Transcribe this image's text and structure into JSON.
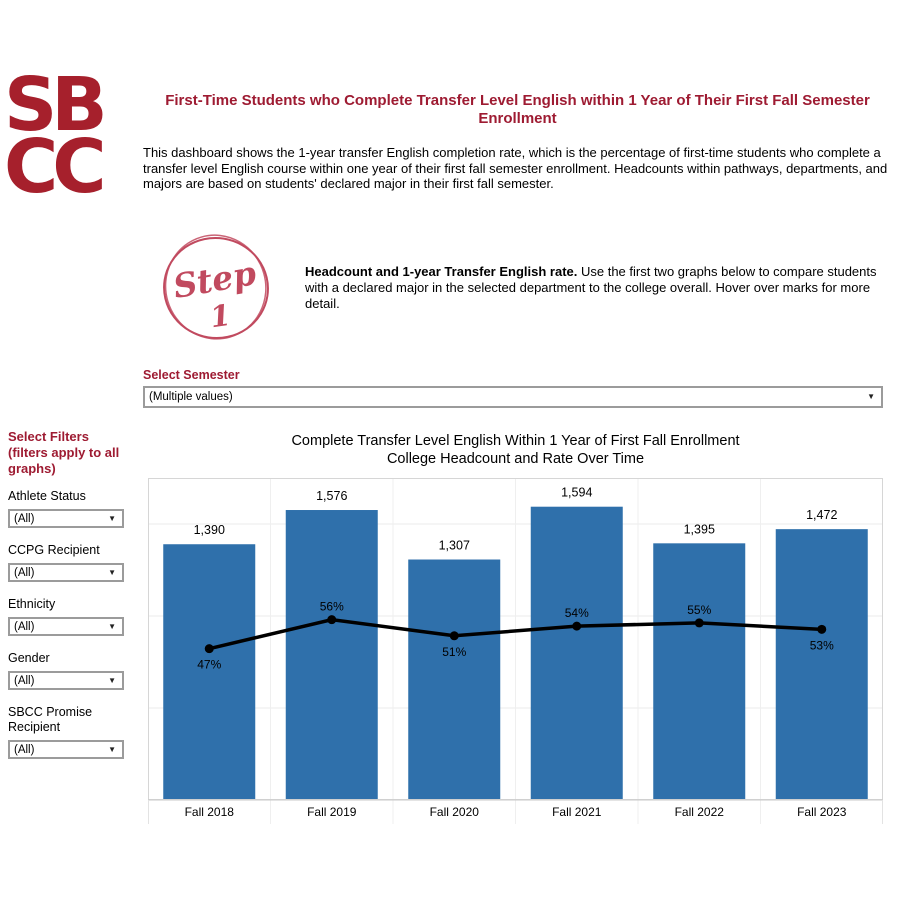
{
  "brand": {
    "logo_line1": "SB",
    "logo_line2": "CC"
  },
  "header": {
    "title_line1": "First-Time Students who Complete Transfer Level English",
    "title_line2": "within 1 Year of Their First Fall Semester Enrollment",
    "intro": "This dashboard shows the 1-year transfer English completion rate, which is the percentage of first-time students who complete a transfer level English course within one year of their first fall semester enrollment. Headcounts within pathways, departments, and majors are based on students' declared major in their first fall semester."
  },
  "step": {
    "badge_word": "Step",
    "badge_number": "1",
    "lead": "Headcount and 1-year Transfer English rate.",
    "body": " Use the first two graphs below to compare students with a declared major in the selected department to the college overall. Hover over marks for more detail."
  },
  "semester_filter": {
    "label": "Select Semester",
    "value": "(Multiple values)"
  },
  "sidebar": {
    "title_lines": [
      "Select Filters",
      "(filters apply to all",
      "graphs)"
    ],
    "filters": [
      {
        "label": "Athlete Status",
        "value": "(All)"
      },
      {
        "label": "CCPG Recipient",
        "value": "(All)"
      },
      {
        "label": "Ethnicity",
        "value": "(All)"
      },
      {
        "label": "Gender",
        "value": "(All)"
      },
      {
        "label": "SBCC Promise Recipient",
        "value": "(All)"
      }
    ]
  },
  "chart_data": {
    "type": "bar",
    "title_line1": "Complete Transfer Level English Within 1 Year of First Fall Enrollment",
    "title_line2": "College Headcount and Rate Over Time",
    "categories": [
      "Fall 2018",
      "Fall 2019",
      "Fall 2020",
      "Fall 2021",
      "Fall 2022",
      "Fall 2023"
    ],
    "series": [
      {
        "name": "College Headcount",
        "type": "bar",
        "values": [
          1390,
          1576,
          1307,
          1594,
          1395,
          1472
        ],
        "labels": [
          "1,390",
          "1,576",
          "1,307",
          "1,594",
          "1,395",
          "1,472"
        ],
        "color": "#2F70AB"
      },
      {
        "name": "1-Year Transfer English Completion Rate",
        "type": "line",
        "values_pct": [
          47,
          56,
          51,
          54,
          55,
          53
        ],
        "labels": [
          "47%",
          "56%",
          "51%",
          "54%",
          "55%",
          "53%"
        ],
        "label_positions": [
          "below",
          "above",
          "below",
          "above",
          "above",
          "below"
        ],
        "color": "#000000"
      }
    ],
    "bar_axis_max": 1750,
    "pct_axis_max": 100,
    "gridlines_at": [
      500,
      1000,
      1500
    ],
    "legend": "none",
    "grid": "horizontal-light"
  },
  "colors": {
    "brand_red": "#A6202C",
    "accent_maroon": "#9E1B32",
    "step_pink": "#C14A5F",
    "bar_blue": "#2F70AB",
    "grid_gray": "#ebebeb",
    "border_gray": "#d6d6d6"
  }
}
